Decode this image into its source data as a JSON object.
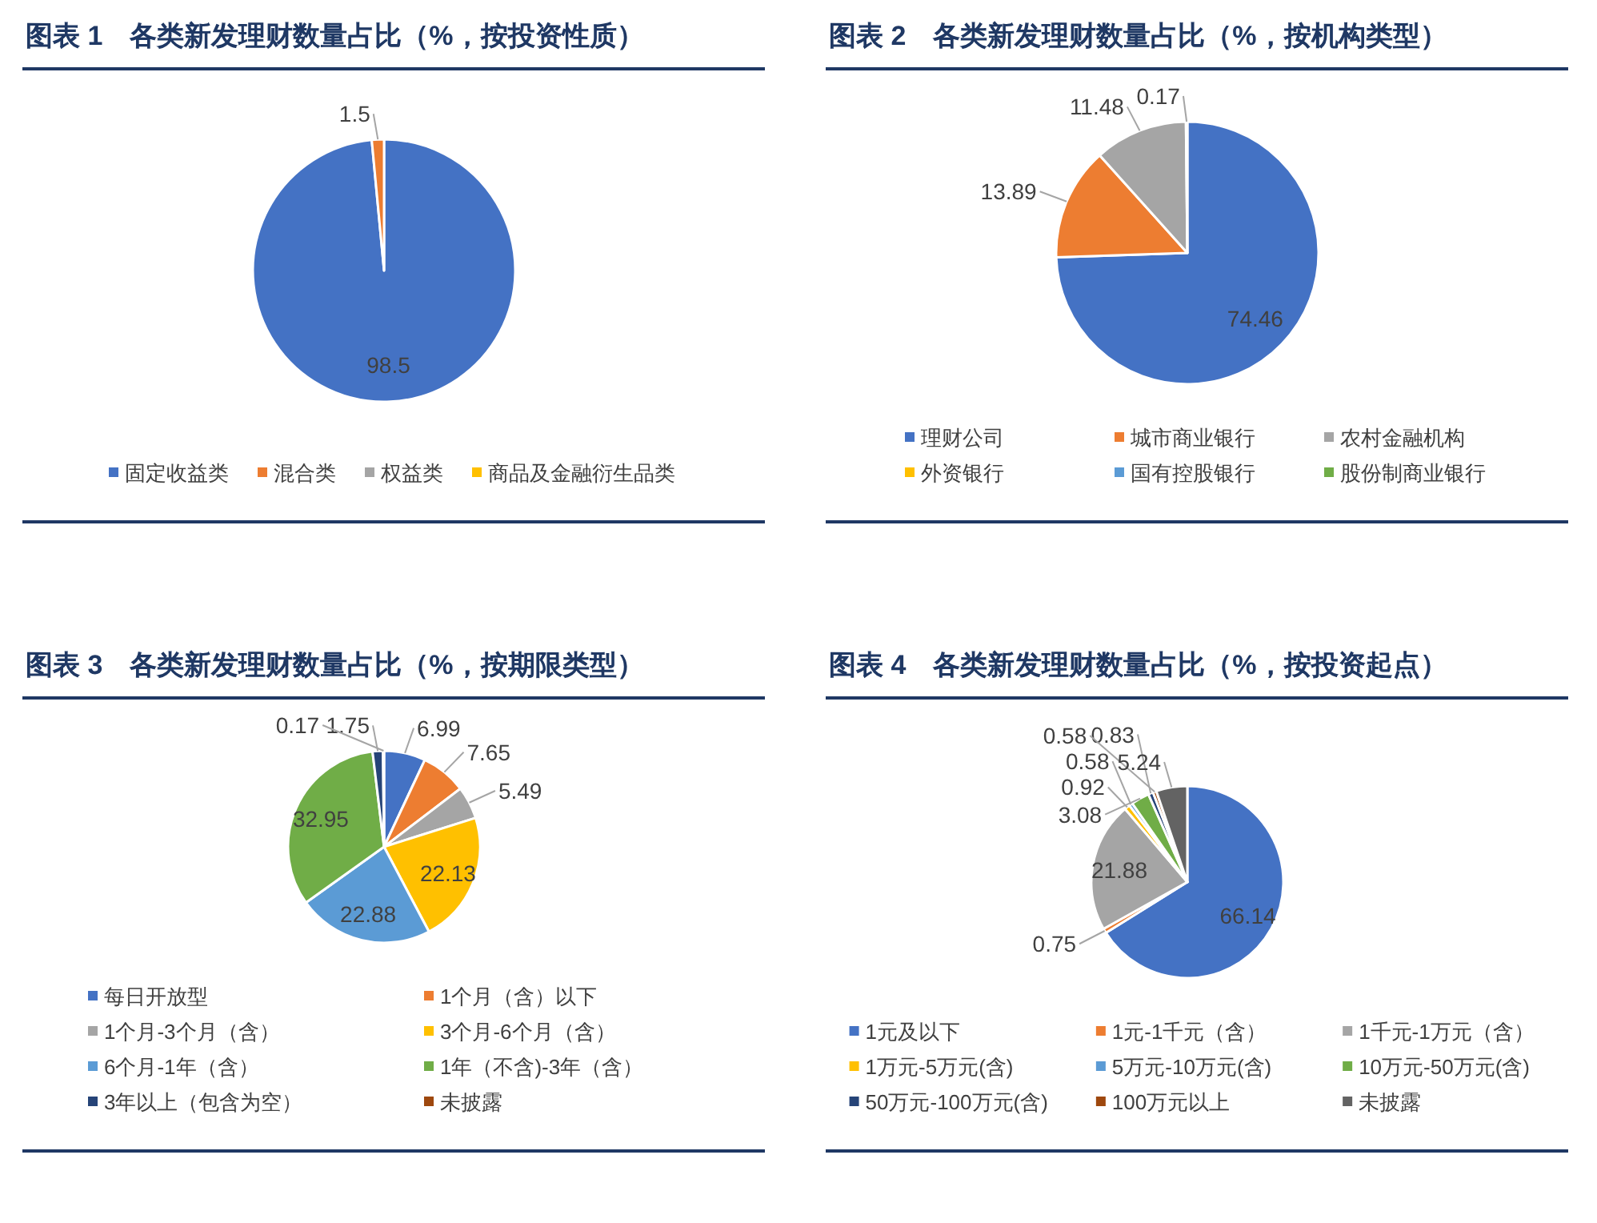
{
  "chart_data": [
    {
      "type": "pie",
      "title": "图表 1　各类新发理财数量占比（%，按投资性质）",
      "categories": [
        "固定收益类",
        "混合类",
        "权益类",
        "商品及金融衍生品类"
      ],
      "values": [
        98.5,
        1.5,
        0,
        0
      ],
      "value_labels": [
        "98.5",
        "1.5",
        null,
        null
      ],
      "colors": [
        "#4472c4",
        "#ed7d31",
        "#a5a5a5",
        "#ffc000"
      ],
      "legend": "bottom"
    },
    {
      "type": "pie",
      "title": "图表 2　各类新发理财数量占比（%，按机构类型）",
      "categories": [
        "理财公司",
        "城市商业银行",
        "农村金融机构",
        "外资银行",
        "国有控股银行",
        "股份制商业银行"
      ],
      "values": [
        74.46,
        13.89,
        11.48,
        0.17,
        0,
        0
      ],
      "value_labels": [
        "74.46",
        "13.89",
        "11.48",
        "0.17",
        null,
        null
      ],
      "colors": [
        "#4472c4",
        "#ed7d31",
        "#a5a5a5",
        "#ffc000",
        "#5b9bd5",
        "#70ad47"
      ],
      "legend": "bottom"
    },
    {
      "type": "pie",
      "title": "图表 3　各类新发理财数量占比（%，按期限类型）",
      "categories": [
        "每日开放型",
        "1个月（含）以下",
        "1个月-3个月（含）",
        "3个月-6个月（含）",
        "6个月-1年（含）",
        "1年（不含)-3年（含）",
        "3年以上（包含为空）",
        "未披露"
      ],
      "values": [
        6.99,
        7.65,
        5.49,
        22.13,
        22.88,
        32.95,
        1.75,
        0.17
      ],
      "data_labels": true,
      "colors": [
        "#4472c4",
        "#ed7d31",
        "#a5a5a5",
        "#ffc000",
        "#5b9bd5",
        "#70ad47",
        "#264478",
        "#9e480e"
      ],
      "legend": "bottom"
    },
    {
      "type": "pie",
      "title": "图表 4　各类新发理财数量占比（%，按投资起点）",
      "categories": [
        "1元及以下",
        "1元-1千元（含）",
        "1千元-1万元（含）",
        "1万元-5万元(含)",
        "5万元-10万元(含)",
        "10万元-50万元(含)",
        "50万元-100万元(含)",
        "100万元以上",
        "未披露"
      ],
      "values": [
        66.14,
        0.75,
        21.88,
        0.92,
        0.58,
        3.08,
        0.83,
        0.58,
        5.24
      ],
      "data_labels": true,
      "colors": [
        "#4472c4",
        "#ed7d31",
        "#a5a5a5",
        "#ffc000",
        "#5b9bd5",
        "#70ad47",
        "#264478",
        "#9e480e",
        "#636363"
      ],
      "legend": "bottom"
    }
  ]
}
